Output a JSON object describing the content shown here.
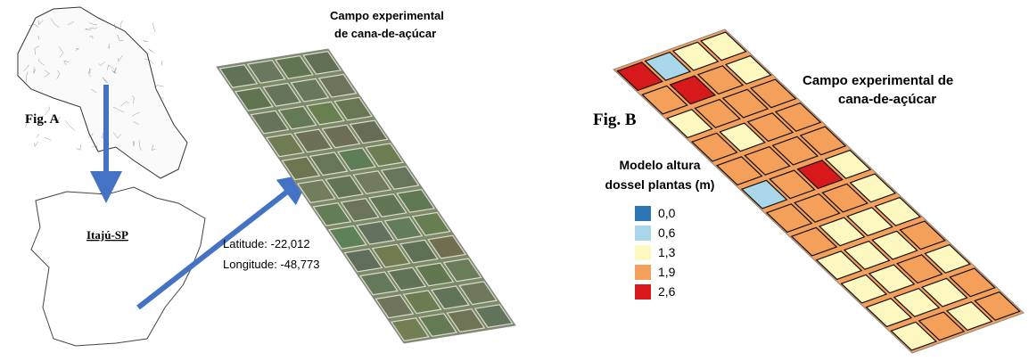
{
  "figure_a": {
    "label": "Fig. A",
    "municipality": "Itajú-SP",
    "field_title": [
      "Campo experimental",
      "de cana-de-açúcar"
    ],
    "latitude": "Latitude: -22,012",
    "longitude": "Longitude: -48,773"
  },
  "figure_b": {
    "label": "Fig. B",
    "field_title": [
      "Campo experimental de",
      "cana-de-açúcar"
    ],
    "legend": {
      "title": [
        "Modelo altura",
        "dossel plantas (m)"
      ],
      "items": [
        {
          "label": "0,0",
          "color": "#2e75b6"
        },
        {
          "label": "0,6",
          "color": "#a9d6e8"
        },
        {
          "label": "1,3",
          "color": "#fdf8c0"
        },
        {
          "label": "1,9",
          "color": "#f4a05a"
        },
        {
          "label": "2,6",
          "color": "#d7191c"
        }
      ]
    }
  }
}
